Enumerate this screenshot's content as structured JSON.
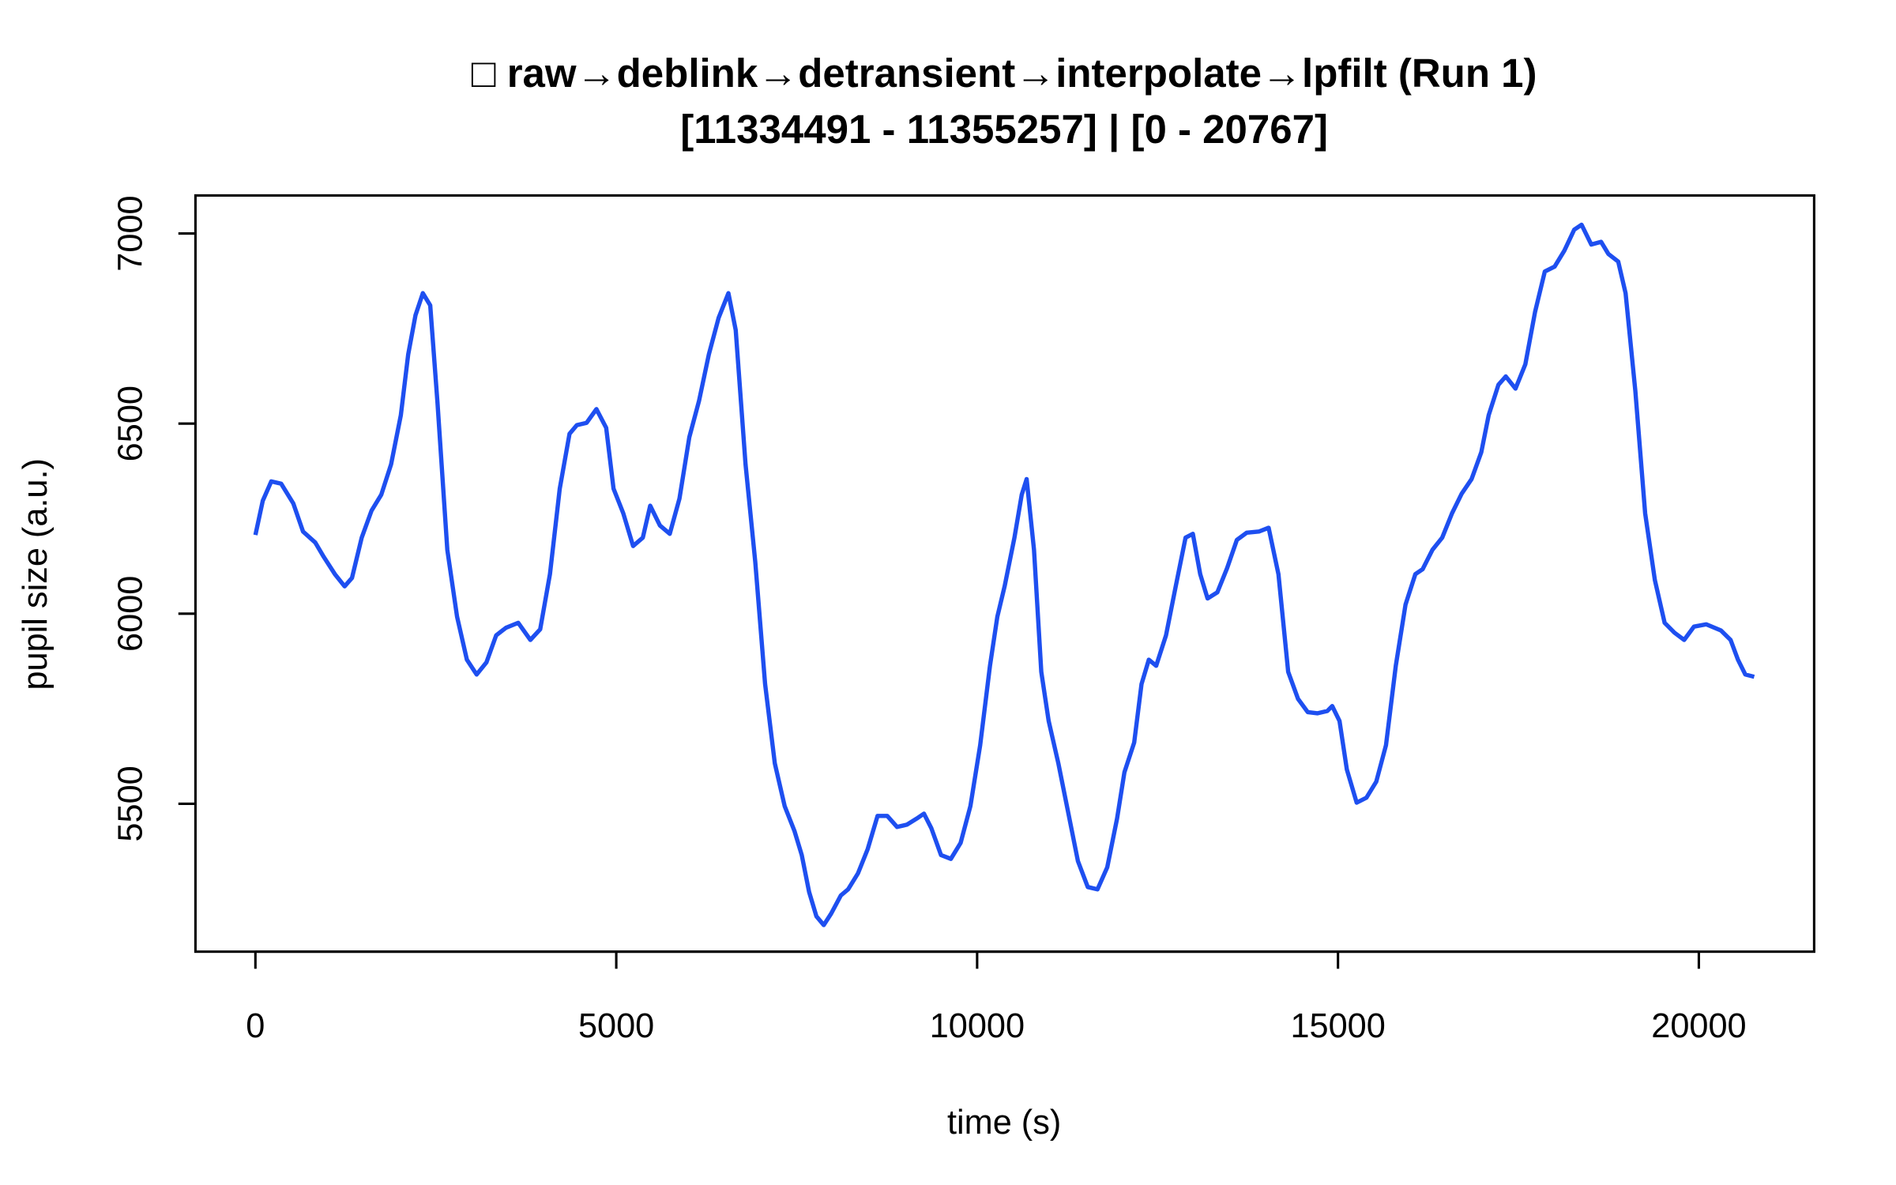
{
  "chart_data": {
    "type": "line",
    "title": "□ raw→deblink→detransient→interpolate→lpfilt (Run 1)",
    "subtitle": "[11334491 - 11355257] | [0 - 20767]",
    "x_label": "time (s)",
    "y_label": "pupil size (a.u.)",
    "xlim": [
      -830.68,
      21597.68
    ],
    "ylim": [
      5111,
      7100
    ],
    "xticks": [
      0,
      5000,
      10000,
      15000,
      20000
    ],
    "yticks": [
      5500,
      6000,
      6500,
      7000
    ],
    "x": [
      0,
      102,
      220,
      356,
      525,
      660,
      830,
      948,
      1101,
      1236,
      1338,
      1473,
      1609,
      1744,
      1880,
      2015,
      2117,
      2218,
      2320,
      2422,
      2523,
      2659,
      2794,
      2930,
      3065,
      3201,
      3336,
      3472,
      3641,
      3810,
      3946,
      4081,
      4217,
      4352,
      4454,
      4589,
      4725,
      4860,
      4962,
      5097,
      5233,
      5368,
      5470,
      5605,
      5741,
      5876,
      6012,
      6147,
      6283,
      6418,
      6554,
      6655,
      6791,
      6926,
      7062,
      7197,
      7333,
      7468,
      7570,
      7672,
      7773,
      7875,
      7977,
      8112,
      8213,
      8349,
      8484,
      8620,
      8755,
      8891,
      9026,
      9162,
      9263,
      9365,
      9500,
      9636,
      9771,
      9907,
      10042,
      10178,
      10280,
      10381,
      10517,
      10618,
      10686,
      10788,
      10889,
      10991,
      11126,
      11262,
      11397,
      11533,
      11668,
      11803,
      11939,
      12041,
      12176,
      12278,
      12379,
      12481,
      12617,
      12752,
      12888,
      12989,
      13091,
      13193,
      13328,
      13464,
      13599,
      13735,
      13904,
      14039,
      14175,
      14310,
      14446,
      14581,
      14717,
      14852,
      14920,
      15021,
      15123,
      15259,
      15394,
      15530,
      15665,
      15801,
      15936,
      16072,
      16173,
      16309,
      16444,
      16580,
      16715,
      16851,
      16986,
      17088,
      17223,
      17325,
      17460,
      17596,
      17731,
      17866,
      18002,
      18137,
      18273,
      18375,
      18510,
      18646,
      18747,
      18883,
      18985,
      19120,
      19256,
      19391,
      19526,
      19662,
      19797,
      19933,
      20102,
      20305,
      20440,
      20542,
      20644,
      20767
    ],
    "series": [
      {
        "name": "pupil",
        "color": "#1e4ff0",
        "values": [
          6207,
          6297,
          6348,
          6342,
          6290,
          6216,
          6187,
          6149,
          6104,
          6072,
          6094,
          6200,
          6271,
          6313,
          6393,
          6522,
          6682,
          6785,
          6843,
          6811,
          6554,
          6168,
          5992,
          5879,
          5840,
          5872,
          5943,
          5963,
          5976,
          5931,
          5959,
          6104,
          6329,
          6473,
          6496,
          6502,
          6538,
          6489,
          6329,
          6264,
          6178,
          6200,
          6284,
          6232,
          6210,
          6303,
          6464,
          6560,
          6682,
          6778,
          6843,
          6746,
          6393,
          6136,
          5815,
          5606,
          5494,
          5429,
          5365,
          5268,
          5204,
          5181,
          5211,
          5259,
          5275,
          5317,
          5381,
          5468,
          5468,
          5439,
          5445,
          5461,
          5474,
          5436,
          5365,
          5355,
          5397,
          5494,
          5654,
          5863,
          5992,
          6072,
          6200,
          6313,
          6354,
          6168,
          5847,
          5718,
          5606,
          5477,
          5349,
          5281,
          5275,
          5333,
          5461,
          5583,
          5661,
          5815,
          5879,
          5863,
          5943,
          6072,
          6200,
          6210,
          6104,
          6040,
          6056,
          6120,
          6194,
          6213,
          6216,
          6226,
          6104,
          5847,
          5776,
          5741,
          5738,
          5744,
          5757,
          5718,
          5590,
          5503,
          5516,
          5558,
          5654,
          5863,
          6024,
          6104,
          6117,
          6168,
          6200,
          6264,
          6316,
          6354,
          6425,
          6522,
          6602,
          6624,
          6592,
          6656,
          6794,
          6900,
          6913,
          6955,
          7010,
          7023,
          6971,
          6978,
          6946,
          6926,
          6843,
          6586,
          6264,
          6088,
          5976,
          5950,
          5931,
          5966,
          5972,
          5956,
          5931,
          5879,
          5840,
          5834
        ]
      }
    ]
  }
}
